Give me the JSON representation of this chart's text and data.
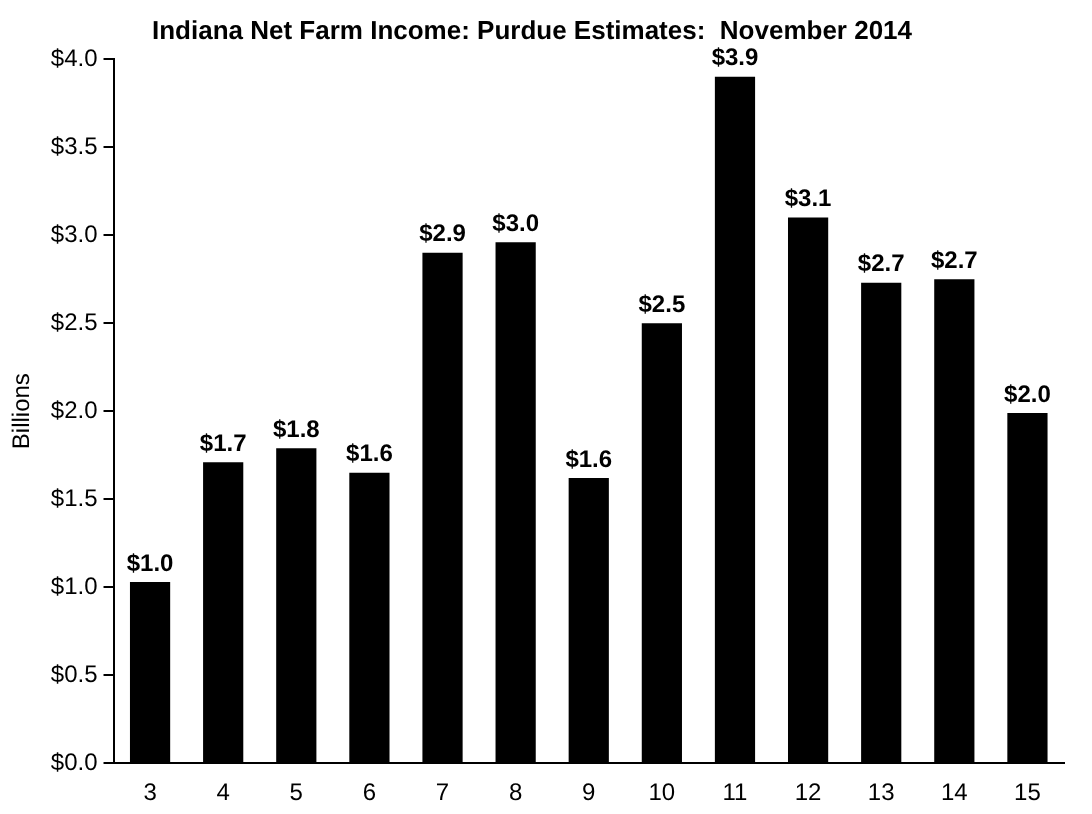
{
  "chart_data": {
    "type": "bar",
    "title": "Indiana Net Farm Income: Purdue Estimates:  November 2014",
    "ylabel": "Billions",
    "categories": [
      "3",
      "4",
      "5",
      "6",
      "7",
      "8",
      "9",
      "10",
      "11",
      "12",
      "13",
      "14",
      "15"
    ],
    "values": [
      1.03,
      1.71,
      1.79,
      1.65,
      2.9,
      2.96,
      1.62,
      2.5,
      3.9,
      3.1,
      2.73,
      2.75,
      1.99
    ],
    "value_labels": [
      "$1.0",
      "$1.7",
      "$1.8",
      "$1.6",
      "$2.9",
      "$3.0",
      "$1.6",
      "$2.5",
      "$3.9",
      "$3.1",
      "$2.7",
      "$2.7",
      "$2.0"
    ],
    "color": "#000000",
    "ylim": [
      0,
      4
    ],
    "yticks": [
      {
        "value": 0,
        "label": "$0.0"
      },
      {
        "value": 0.5,
        "label": "$0.5"
      },
      {
        "value": 1,
        "label": "$1.0"
      },
      {
        "value": 1.5,
        "label": "$1.5"
      },
      {
        "value": 2,
        "label": "$2.0"
      },
      {
        "value": 2.5,
        "label": "$2.5"
      },
      {
        "value": 3,
        "label": "$3.0"
      },
      {
        "value": 3.5,
        "label": "$3.5"
      },
      {
        "value": 4,
        "label": "$4.0"
      }
    ],
    "grid": false,
    "legend": false
  }
}
